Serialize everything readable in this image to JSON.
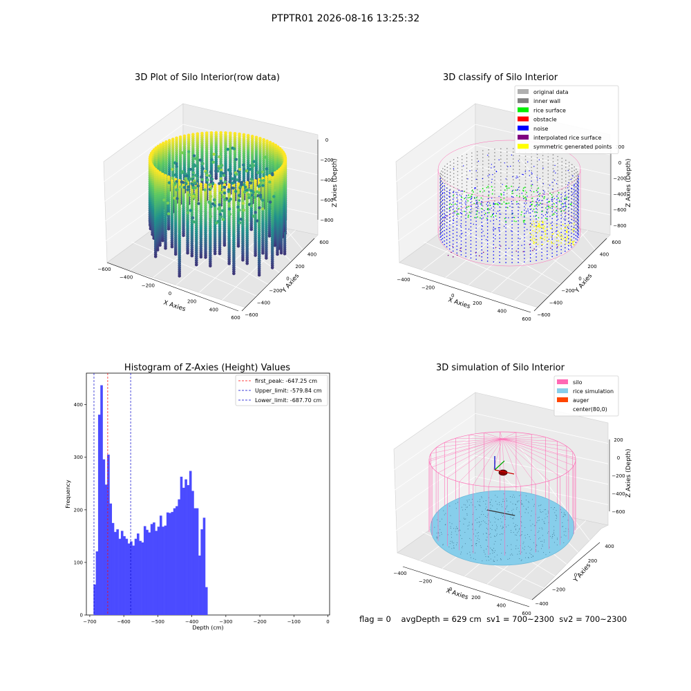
{
  "suptitle": "PTPTR01 2026-08-16 13:25:32",
  "colors": {
    "hist_bar": "#4b4bff",
    "first_peak": "#ff0000",
    "limits": "#0000cc",
    "silo": "#ff69b4",
    "rice": "#87ceeb",
    "auger": "#ff4500",
    "noise": "#0000ff",
    "inner_wall": "#808080",
    "rice_surface": "#00ee00",
    "symmetric": "#ffff00",
    "obstacle": "#ff0000",
    "interp": "#800080",
    "original": "#b0b0b0"
  },
  "panel1": {
    "title": "3D Plot of Silo Interior(row data)",
    "xlabel": "X Axies",
    "ylabel": "Y Axies",
    "zlabel": "Z Axies (Depth)",
    "xticks": [
      "−600",
      "−400",
      "−200",
      "0",
      "200",
      "400",
      "600"
    ],
    "yticks": [
      "−600",
      "−400",
      "−200",
      "0",
      "200",
      "400",
      "600"
    ],
    "zticks": [
      "0",
      "−200",
      "−400",
      "−600",
      "−800"
    ]
  },
  "panel2": {
    "title": "3D classify of Silo Interior",
    "xlabel": "X Axies",
    "ylabel": "Y Axies",
    "zlabel": "Z Axies (Depth)",
    "xticks": [
      "−400",
      "−200",
      "0",
      "200",
      "400",
      "600"
    ],
    "yticks": [
      "−600",
      "−400",
      "−200",
      "0",
      "200",
      "400",
      "600"
    ],
    "zticks": [
      "200",
      "0",
      "−200",
      "−400",
      "−600",
      "−800"
    ],
    "legend": [
      {
        "label": "original data",
        "color": "#b0b0b0"
      },
      {
        "label": "inner wall",
        "color": "#808080"
      },
      {
        "label": "rice surface",
        "color": "#00ee00"
      },
      {
        "label": "obstacle",
        "color": "#ff0000"
      },
      {
        "label": "noise",
        "color": "#0000ff"
      },
      {
        "label": "interpolated rice surface",
        "color": "#800080"
      },
      {
        "label": "symmetric generated points",
        "color": "#ffff00"
      }
    ]
  },
  "panel4": {
    "title": "3D simulation of Silo Interior",
    "xlabel": "X Axies",
    "ylabel": "Y Axies",
    "zlabel": "Z Axies (Depth)",
    "xticks": [
      "−400",
      "−200",
      "0",
      "200",
      "400",
      "600"
    ],
    "yticks": [
      "−400",
      "−200",
      "0",
      "200",
      "400"
    ],
    "zticks": [
      "200",
      "0",
      "−200",
      "−400",
      "−600"
    ],
    "legend": [
      {
        "label": "silo",
        "color": "#ff69b4"
      },
      {
        "label": "rice simulation",
        "color": "#87ceeb"
      },
      {
        "label": "auger",
        "color": "#ff4500"
      },
      {
        "label": "center(80,0)",
        "color": ""
      }
    ]
  },
  "chart_data": {
    "type": "bar",
    "title": "Histogram of Z-Axies (Height) Values",
    "xlabel": "Depth (cm)",
    "ylabel": "Frequency",
    "xlim": [
      -710,
      5
    ],
    "ylim": [
      0,
      460
    ],
    "xticks": [
      -700,
      -600,
      -500,
      -400,
      -300,
      -200,
      -100,
      0
    ],
    "xtick_labels": [
      "−700",
      "−600",
      "−500",
      "−400",
      "−300",
      "−200",
      "−100",
      "0"
    ],
    "yticks": [
      0,
      100,
      200,
      300,
      400
    ],
    "bin_start": -689,
    "bin_width": 6.7,
    "values": [
      58,
      121,
      381,
      437,
      296,
      248,
      305,
      212,
      175,
      158,
      163,
      145,
      160,
      150,
      145,
      136,
      140,
      132,
      145,
      155,
      141,
      138,
      169,
      162,
      157,
      173,
      176,
      160,
      168,
      189,
      168,
      170,
      195,
      194,
      196,
      203,
      207,
      220,
      263,
      242,
      258,
      247,
      274,
      236,
      203,
      203,
      113,
      163,
      185,
      53
    ],
    "vlines": [
      {
        "label": "first_peak: -647.25 cm",
        "x": -647.25,
        "color": "#ff0000"
      },
      {
        "label": "Upper_limit: -579.84 cm",
        "x": -579.84,
        "color": "#0000cc"
      },
      {
        "label": "Lower_limit: -687.70 cm",
        "x": -687.7,
        "color": "#0000cc"
      }
    ]
  },
  "footer": {
    "flag": "flag = 0",
    "avg": "avgDepth = 629 cm",
    "sv1": "sv1 = 700~2300",
    "sv2": "sv2 = 700~2300"
  }
}
